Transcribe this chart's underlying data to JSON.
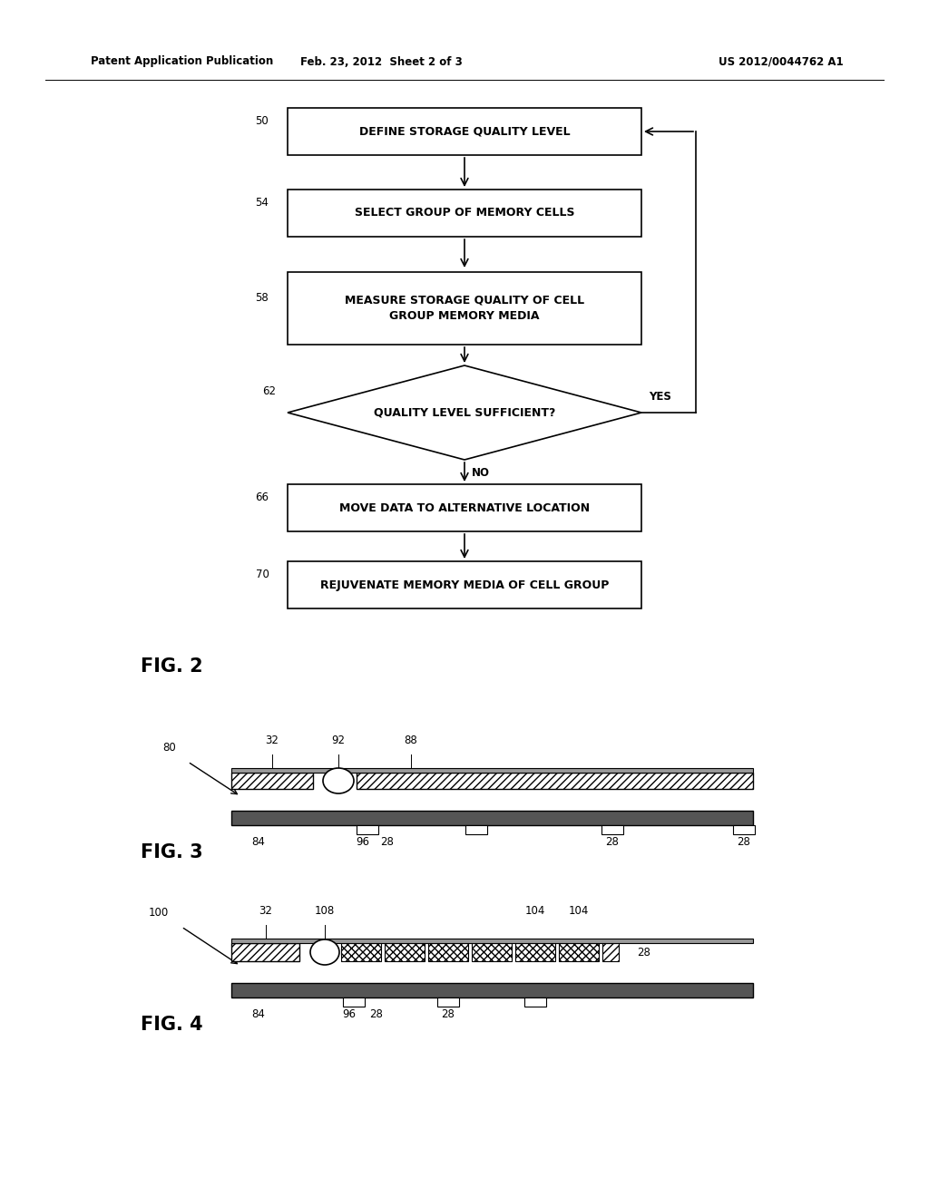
{
  "bg_color": "#ffffff",
  "header_left": "Patent Application Publication",
  "header_mid": "Feb. 23, 2012  Sheet 2 of 3",
  "header_right": "US 2012/0044762 A1",
  "fig2_label": "FIG. 2",
  "fig3_label": "FIG. 3",
  "fig4_label": "FIG. 4",
  "box50_text": "DEFINE STORAGE QUALITY LEVEL",
  "box54_text": "SELECT GROUP OF MEMORY CELLS",
  "box58_text": "MEASURE STORAGE QUALITY OF CELL\nGROUP MEMORY MEDIA",
  "box66_text": "MOVE DATA TO ALTERNATIVE LOCATION",
  "box70_text": "REJUVENATE MEMORY MEDIA OF CELL GROUP",
  "diamond_text": "QUALITY LEVEL SUFFICIENT?",
  "yes_text": "YES",
  "no_text": "NO",
  "id50": "50",
  "id54": "54",
  "id58": "58",
  "id62": "62",
  "id66": "66",
  "id70": "70",
  "id80": "80",
  "id84": "84",
  "id88": "88",
  "id92": "92",
  "id96": "96",
  "id100": "100",
  "id104a": "104",
  "id104b": "104",
  "id108": "108",
  "id28": "28",
  "id32": "32"
}
